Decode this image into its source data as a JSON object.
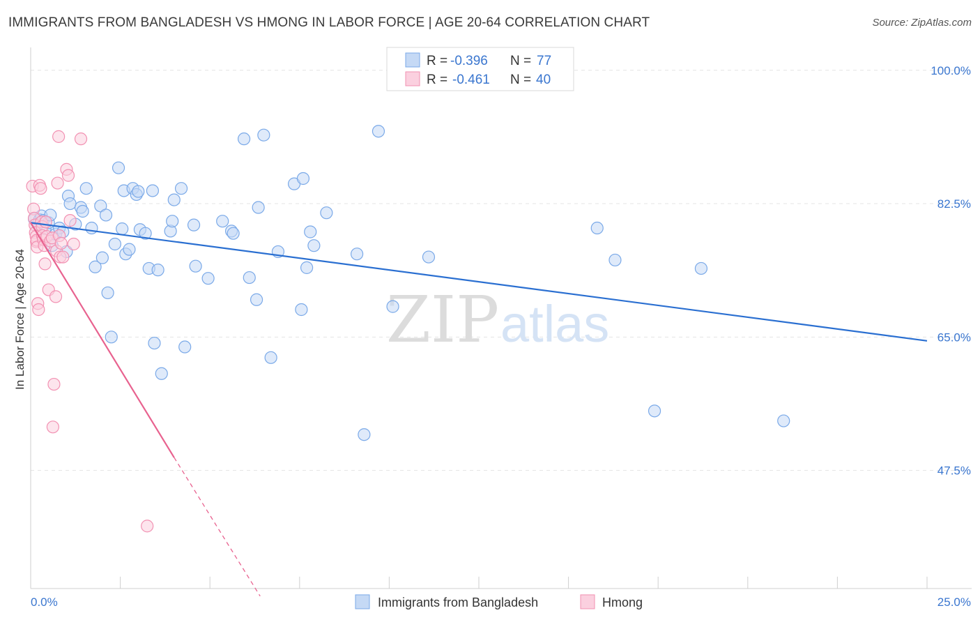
{
  "chart_data": {
    "type": "scatter",
    "title": "IMMIGRANTS FROM BANGLADESH VS HMONG IN LABOR FORCE | AGE 20-64 CORRELATION CHART",
    "source": "Source: ZipAtlas.com",
    "ylabel": "In Labor Force | Age 20-64",
    "xlabel": "",
    "xlim": [
      0,
      25
    ],
    "ylim": [
      32,
      103
    ],
    "x_tick_labels": [
      "0.0%",
      "25.0%"
    ],
    "y_ticks": [
      47.5,
      65.0,
      82.5,
      100.0
    ],
    "y_tick_labels": [
      "47.5%",
      "65.0%",
      "82.5%",
      "100.0%"
    ],
    "watermark": "ZIPatlas",
    "legend": {
      "r_label": "R =",
      "n_label": "N =",
      "entries": [
        {
          "name": "Immigrants from Bangladesh",
          "r": "-0.396",
          "n": "77",
          "color": "#7aa9e8"
        },
        {
          "name": "Hmong",
          "r": "-0.461",
          "n": "40",
          "color": "#f291b2"
        }
      ]
    },
    "series": [
      {
        "name": "Immigrants from Bangladesh",
        "color": "#7aa9e8",
        "line_color": "#2a6fd1",
        "trend": {
          "x0": 0.0,
          "y0": 80.0,
          "x1": 25.0,
          "y1": 64.5
        },
        "points": [
          [
            0.1,
            80.5
          ],
          [
            0.2,
            79.8
          ],
          [
            0.25,
            80.4
          ],
          [
            0.3,
            80.9
          ],
          [
            0.35,
            80.3
          ],
          [
            0.4,
            79.2
          ],
          [
            0.5,
            80.0
          ],
          [
            0.55,
            81.0
          ],
          [
            0.6,
            77.0
          ],
          [
            0.7,
            78.5
          ],
          [
            0.8,
            79.3
          ],
          [
            0.9,
            78.8
          ],
          [
            1.0,
            76.2
          ],
          [
            1.05,
            83.5
          ],
          [
            1.1,
            82.5
          ],
          [
            1.25,
            79.8
          ],
          [
            1.4,
            82.0
          ],
          [
            1.45,
            81.5
          ],
          [
            1.55,
            84.5
          ],
          [
            1.7,
            79.3
          ],
          [
            1.8,
            74.2
          ],
          [
            1.95,
            82.2
          ],
          [
            2.0,
            75.4
          ],
          [
            2.1,
            81.0
          ],
          [
            2.15,
            70.8
          ],
          [
            2.25,
            65.0
          ],
          [
            2.35,
            77.2
          ],
          [
            2.45,
            87.2
          ],
          [
            2.55,
            79.2
          ],
          [
            2.6,
            84.2
          ],
          [
            2.65,
            75.9
          ],
          [
            2.75,
            76.5
          ],
          [
            2.85,
            84.5
          ],
          [
            2.95,
            83.7
          ],
          [
            3.0,
            84.1
          ],
          [
            3.05,
            79.1
          ],
          [
            3.2,
            78.6
          ],
          [
            3.3,
            74.0
          ],
          [
            3.4,
            84.2
          ],
          [
            3.45,
            64.2
          ],
          [
            3.55,
            73.8
          ],
          [
            3.65,
            60.2
          ],
          [
            3.9,
            78.9
          ],
          [
            3.95,
            80.2
          ],
          [
            4.0,
            83.0
          ],
          [
            4.2,
            84.5
          ],
          [
            4.3,
            63.7
          ],
          [
            4.55,
            79.7
          ],
          [
            4.6,
            74.3
          ],
          [
            4.95,
            72.7
          ],
          [
            5.35,
            80.2
          ],
          [
            5.6,
            78.9
          ],
          [
            5.65,
            78.6
          ],
          [
            5.95,
            91.0
          ],
          [
            6.1,
            72.8
          ],
          [
            6.3,
            69.9
          ],
          [
            6.35,
            82.0
          ],
          [
            6.5,
            91.5
          ],
          [
            6.7,
            62.3
          ],
          [
            6.9,
            76.2
          ],
          [
            7.35,
            85.1
          ],
          [
            7.55,
            68.6
          ],
          [
            7.6,
            85.8
          ],
          [
            7.7,
            74.1
          ],
          [
            7.8,
            78.8
          ],
          [
            7.9,
            77.0
          ],
          [
            8.25,
            81.3
          ],
          [
            9.1,
            75.9
          ],
          [
            9.3,
            52.2
          ],
          [
            9.7,
            92.0
          ],
          [
            10.1,
            69.0
          ],
          [
            11.1,
            75.5
          ],
          [
            15.8,
            79.3
          ],
          [
            16.3,
            75.1
          ],
          [
            17.4,
            55.3
          ],
          [
            18.7,
            74.0
          ],
          [
            21.0,
            54.0
          ]
        ]
      },
      {
        "name": "Hmong",
        "color": "#f291b2",
        "line_color": "#e8628f",
        "trend": {
          "x0": 0.0,
          "y0": 80.0,
          "x1": 4.0,
          "y1": 49.2
        },
        "trend_extension": {
          "x0": 4.0,
          "y0": 49.2,
          "x1": 6.4,
          "y1": 31.0
        },
        "points": [
          [
            0.05,
            84.8
          ],
          [
            0.08,
            81.8
          ],
          [
            0.1,
            80.6
          ],
          [
            0.12,
            79.7
          ],
          [
            0.13,
            78.7
          ],
          [
            0.15,
            78.2
          ],
          [
            0.16,
            77.5
          ],
          [
            0.17,
            77.7
          ],
          [
            0.18,
            76.8
          ],
          [
            0.2,
            69.4
          ],
          [
            0.22,
            68.6
          ],
          [
            0.25,
            84.9
          ],
          [
            0.28,
            84.5
          ],
          [
            0.3,
            80.1
          ],
          [
            0.32,
            79.5
          ],
          [
            0.33,
            78.3
          ],
          [
            0.35,
            77.8
          ],
          [
            0.38,
            77.0
          ],
          [
            0.4,
            74.6
          ],
          [
            0.42,
            80.1
          ],
          [
            0.45,
            78.2
          ],
          [
            0.5,
            71.2
          ],
          [
            0.55,
            77.6
          ],
          [
            0.6,
            78.0
          ],
          [
            0.62,
            53.2
          ],
          [
            0.65,
            58.8
          ],
          [
            0.7,
            70.3
          ],
          [
            0.72,
            76.3
          ],
          [
            0.75,
            85.2
          ],
          [
            0.78,
            91.3
          ],
          [
            0.8,
            78.3
          ],
          [
            0.82,
            75.5
          ],
          [
            0.85,
            77.3
          ],
          [
            0.9,
            75.5
          ],
          [
            1.0,
            87.0
          ],
          [
            1.05,
            86.2
          ],
          [
            1.1,
            80.3
          ],
          [
            1.2,
            77.2
          ],
          [
            1.4,
            91.0
          ],
          [
            3.25,
            40.2
          ]
        ]
      }
    ]
  }
}
